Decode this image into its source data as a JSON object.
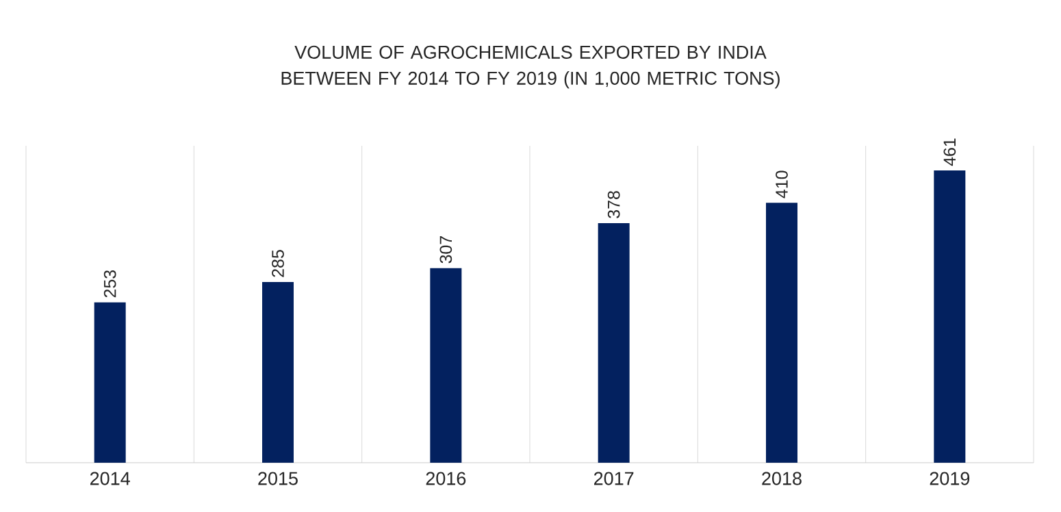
{
  "chart_data": {
    "type": "bar",
    "title": "VOLUME OF AGROCHEMICALS EXPORTED BY INDIA BETWEEN FY 2014 TO FY 2019 (IN 1,000 METRIC TONS)",
    "categories": [
      "2014",
      "2015",
      "2016",
      "2017",
      "2018",
      "2019"
    ],
    "values": [
      253,
      285,
      307,
      378,
      410,
      461
    ],
    "color": "#03215f",
    "ylim": [
      0,
      500
    ],
    "grid": "x",
    "data_labels": true
  }
}
